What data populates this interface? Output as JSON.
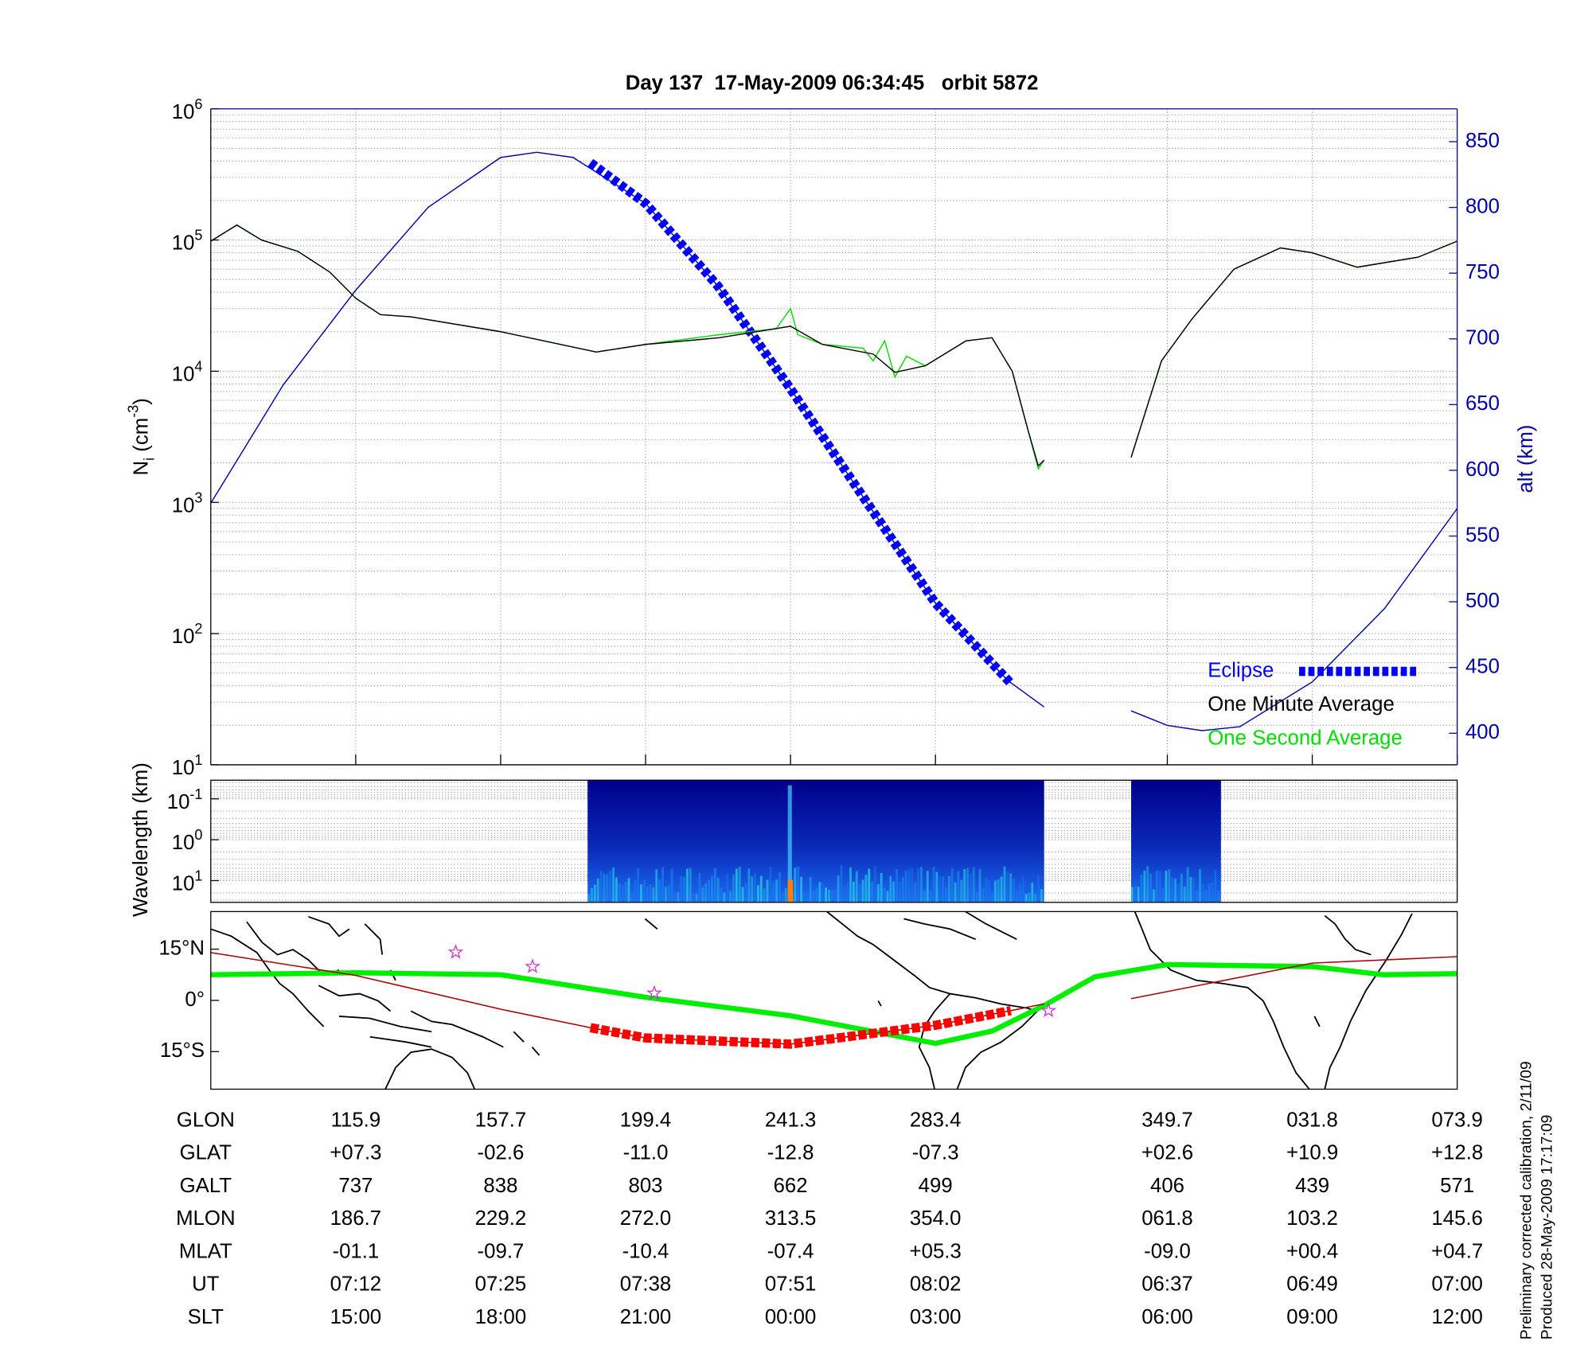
{
  "chart_data": [
    {
      "type": "line",
      "title": "Day 137  17-May-2009 06:34:45   orbit 5872",
      "ylabel": [
        {
          "text": "N"
        },
        {
          "text": "i",
          "shift": "sub"
        },
        {
          "text": " (cm"
        },
        {
          "text": "-3",
          "shift": "super"
        },
        {
          "text": ")"
        }
      ],
      "y2label": "alt (km)",
      "xlim": [
        0,
        8.6
      ],
      "xticks": [
        1,
        2,
        3,
        4,
        5,
        6.6,
        7.6,
        8.6
      ],
      "yscale": "log",
      "ylim": [
        10,
        1000000
      ],
      "yticks": [
        {
          "value": 10,
          "label": [
            "10",
            "1"
          ]
        },
        {
          "value": 100,
          "label": [
            "10",
            "2"
          ]
        },
        {
          "value": 1000,
          "label": [
            "10",
            "3"
          ]
        },
        {
          "value": 10000,
          "label": [
            "10",
            "4"
          ]
        },
        {
          "value": 100000,
          "label": [
            "10",
            "5"
          ]
        },
        {
          "value": 1000000,
          "label": [
            "10",
            "6"
          ]
        }
      ],
      "y2lim": [
        376,
        875
      ],
      "y2ticks": [
        400,
        450,
        500,
        550,
        600,
        650,
        700,
        750,
        800,
        850
      ],
      "grid": true,
      "minor_grid": true,
      "legend": "lower right",
      "series": [
        {
          "color": "#0000aa",
          "axis": "y2",
          "x": [
            0,
            0.5,
            1,
            1.5,
            2,
            2.25,
            2.5,
            3,
            3.5,
            4,
            4.5,
            5,
            5.5,
            5.75,
            null,
            6.35,
            6.6,
            6.84,
            7.1,
            7.6,
            8.1,
            8.6
          ],
          "values": [
            575,
            665,
            737,
            800,
            838,
            842,
            838,
            803,
            740,
            662,
            580,
            499,
            440,
            420,
            null,
            417,
            406,
            402,
            405,
            439,
            495,
            571
          ]
        },
        {
          "name": "Eclipse",
          "color": "#0000ff",
          "axis": "y2",
          "style": "dashed",
          "x": [
            2.62,
            3,
            3.5,
            4,
            4.5,
            5,
            5.52
          ],
          "values": [
            834,
            803,
            740,
            662,
            580,
            499,
            438
          ]
        },
        {
          "name": "One Second Average",
          "color": "#00dd00",
          "x": [
            0,
            0.18,
            0.35,
            0.6,
            0.82,
            1,
            1.17,
            1.38,
            2,
            2.66,
            3,
            3.51,
            3.9,
            4.0,
            4.05,
            4.22,
            4.5,
            4.57,
            4.65,
            4.72,
            4.8,
            4.93,
            5.21,
            5.39,
            5.53,
            5.64,
            5.71,
            5.75,
            null,
            6.35,
            6.56,
            6.77,
            7.06,
            7.38,
            7.6,
            7.91,
            8.33,
            8.6
          ],
          "values": [
            98000,
            130000,
            100000,
            82000,
            57000,
            36000,
            27000,
            26000,
            20000,
            14000,
            16000,
            19000,
            21000,
            30000,
            19000,
            16000,
            15000,
            12000,
            17000,
            9000,
            13000,
            11000,
            17000,
            18000,
            10000,
            3500,
            1800,
            2100,
            null,
            2200,
            12000,
            25000,
            60000,
            87000,
            80000,
            62000,
            74000,
            98000
          ]
        },
        {
          "name": "One Minute Average",
          "color": "#000000",
          "x": [
            0,
            0.18,
            0.35,
            0.6,
            0.82,
            1,
            1.17,
            1.38,
            2,
            2.66,
            3,
            3.51,
            4,
            4.22,
            4.57,
            4.72,
            4.93,
            5.21,
            5.39,
            5.53,
            5.64,
            5.71,
            5.75,
            null,
            6.35,
            6.56,
            6.77,
            7.06,
            7.38,
            7.6,
            7.91,
            8.33,
            8.6
          ],
          "values": [
            98000,
            130000,
            100000,
            82000,
            57000,
            36000,
            27000,
            26000,
            20000,
            14000,
            16000,
            18000,
            22000,
            16000,
            13500,
            9800,
            11000,
            17000,
            18000,
            10000,
            3500,
            1900,
            2100,
            null,
            2200,
            12000,
            25000,
            60000,
            87000,
            80000,
            62000,
            74000,
            98000
          ]
        }
      ]
    },
    {
      "type": "heatmap",
      "ylabel": "Wavelength (km)",
      "xlim": [
        0,
        8.6
      ],
      "yscale": "log",
      "ylim": [
        0.035,
        34
      ],
      "y_reversed": true,
      "yticks": [
        {
          "value": 0.1,
          "label": [
            "10",
            "-1"
          ]
        },
        {
          "value": 1,
          "label": [
            "10",
            "0"
          ]
        },
        {
          "value": 10,
          "label": [
            "10",
            "1"
          ]
        }
      ],
      "minor_grid": true,
      "x_ranges": [
        [
          2.6,
          5.75
        ],
        [
          6.35,
          6.97
        ]
      ]
    },
    {
      "type": "map",
      "xlim": [
        0,
        8.6
      ],
      "ylim": [
        -26,
        26
      ],
      "yticks": [
        {
          "value": 15,
          "label": "15°N"
        },
        {
          "value": 0,
          "label": "0°"
        },
        {
          "value": -15,
          "label": "15°S"
        }
      ],
      "series": [
        {
          "color": "#00ee00",
          "width": 5,
          "x": [
            0,
            1,
            2,
            3,
            4,
            5,
            5.39,
            5.75,
            6.1,
            6.6,
            7.6,
            8.09,
            8.6
          ],
          "values": [
            7.5,
            8.1,
            7.5,
            0.9,
            -4.5,
            -12.6,
            -9,
            -1.5,
            6.9,
            10.5,
            9.9,
            7.5,
            7.8
          ]
        },
        {
          "color": "#aa0000",
          "width": 1.2,
          "x": [
            0,
            1,
            2,
            2.62,
            3,
            4,
            5,
            5.52,
            5.75,
            null,
            6.35,
            6.6,
            7.6,
            8.6
          ],
          "values": [
            14,
            7.3,
            -2.6,
            -8,
            -11.0,
            -12.8,
            -7.3,
            -3,
            -1,
            null,
            0.5,
            2.6,
            10.9,
            12.8
          ]
        },
        {
          "color": "#ff0000",
          "width": 9,
          "style": "dashed",
          "x": [
            2.62,
            3,
            4,
            5,
            5.52
          ],
          "values": [
            -8,
            -11.0,
            -12.8,
            -7.3,
            -3
          ]
        }
      ],
      "points": {
        "color": "#cc33cc",
        "x": [
          1.69,
          2.22,
          3.06,
          5.78
        ],
        "values": [
          14.1,
          9.9,
          2.1,
          -3
        ]
      }
    }
  ],
  "table": {
    "rows": [
      {
        "label": "GLON",
        "values": [
          "115.9",
          "157.7",
          "199.4",
          "241.3",
          "283.4",
          "349.7",
          "031.8",
          "073.9"
        ]
      },
      {
        "label": "GLAT",
        "values": [
          "+07.3",
          "-02.6",
          "-11.0",
          "-12.8",
          "-07.3",
          "+02.6",
          "+10.9",
          "+12.8"
        ]
      },
      {
        "label": "GALT",
        "values": [
          "737",
          "838",
          "803",
          "662",
          "499",
          "406",
          "439",
          "571"
        ]
      },
      {
        "label": "MLON",
        "values": [
          "186.7",
          "229.2",
          "272.0",
          "313.5",
          "354.0",
          "061.8",
          "103.2",
          "145.6"
        ]
      },
      {
        "label": "MLAT",
        "values": [
          "-01.1",
          "-09.7",
          "-10.4",
          "-07.4",
          "+05.3",
          "-09.0",
          "+00.4",
          "+04.7"
        ]
      },
      {
        "label": "UT",
        "values": [
          "07:12",
          "07:25",
          "07:38",
          "07:51",
          "08:02",
          "06:37",
          "06:49",
          "07:00"
        ]
      },
      {
        "label": "SLT",
        "values": [
          "15:00",
          "18:00",
          "21:00",
          "00:00",
          "03:00",
          "06:00",
          "09:00",
          "12:00"
        ]
      }
    ]
  },
  "notes": [
    "Preliminary corrected calibration, 2/11/09",
    "Produced 28-May-2009 17:17:09"
  ]
}
